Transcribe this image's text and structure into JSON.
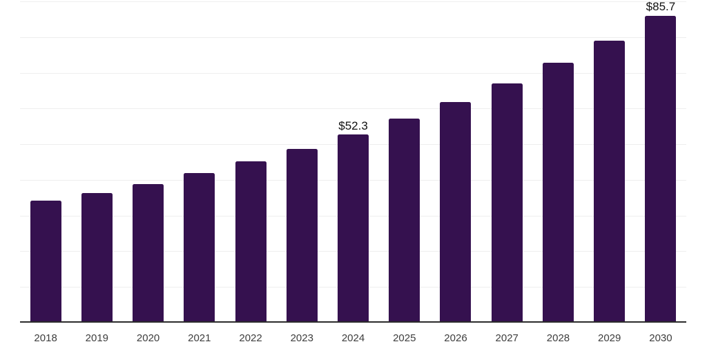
{
  "chart_data": {
    "type": "bar",
    "title": "",
    "xlabel": "",
    "ylabel": "",
    "categories": [
      "2018",
      "2019",
      "2020",
      "2021",
      "2022",
      "2023",
      "2024",
      "2025",
      "2026",
      "2027",
      "2028",
      "2029",
      "2030"
    ],
    "values": [
      33.8,
      36.0,
      38.5,
      41.6,
      44.8,
      48.3,
      52.3,
      56.7,
      61.4,
      66.6,
      72.5,
      78.7,
      85.7
    ],
    "value_labels": {
      "2024": "$52.3",
      "2030": "$85.7"
    },
    "ylim": [
      0,
      90
    ],
    "gridline_step": 10,
    "grid": true,
    "legend": false,
    "colors": {
      "bar": "#35114f",
      "gridline": "#eeeeee",
      "axis_line": "#2b2b2b",
      "tick_label": "#3d3d3d",
      "value_label": "#111111",
      "background": "#ffffff"
    }
  }
}
